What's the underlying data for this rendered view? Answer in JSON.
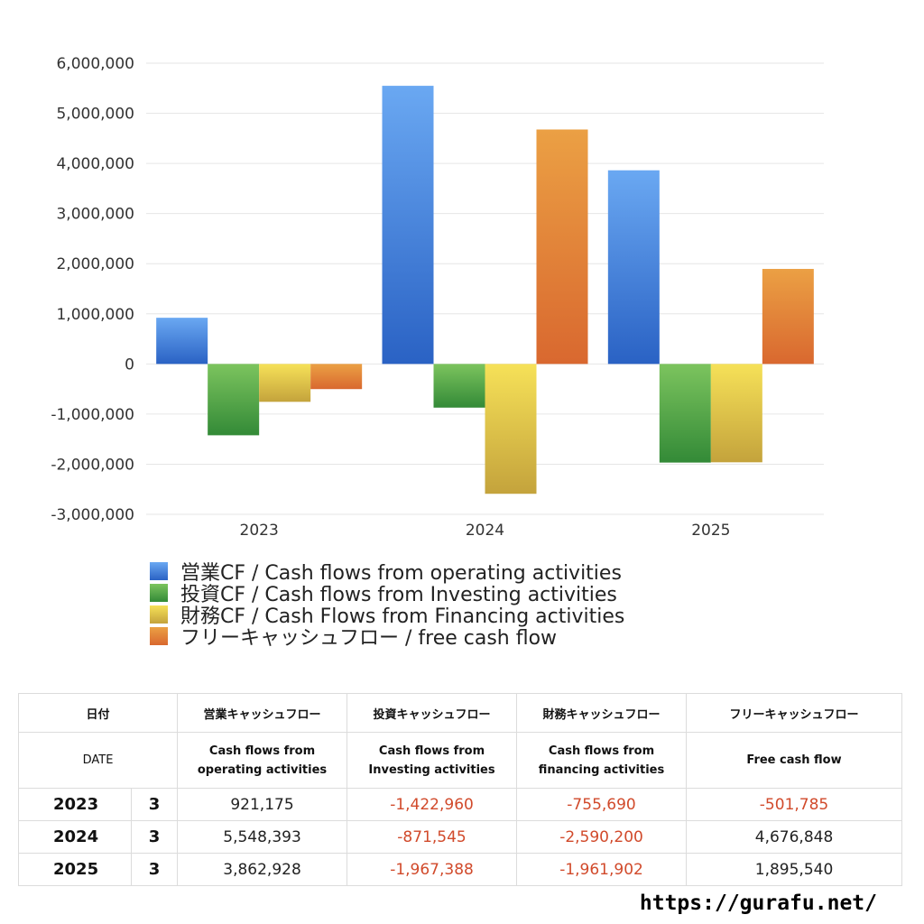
{
  "chart_data": {
    "type": "bar",
    "categories": [
      "2023",
      "2024",
      "2025"
    ],
    "series": [
      {
        "name": "営業CF / Cash flows from operating activities",
        "values": [
          921175,
          5548393,
          3862928
        ],
        "color": "#3f7fdc"
      },
      {
        "name": "投資CF / Cash flows from Investing activities",
        "values": [
          -1422960,
          -871545,
          -1967388
        ],
        "color": "#4aa047"
      },
      {
        "name": "財務CF / Cash Flows from Financing activities",
        "values": [
          -755690,
          -2590200,
          -1961902
        ],
        "color": "#e3c94a"
      },
      {
        "name": "フリーキャッシュフロー / free cash flow",
        "values": [
          -501785,
          4676848,
          1895540
        ],
        "color": "#e1813a"
      }
    ],
    "ylim": [
      -3000000,
      6000000
    ],
    "yticks": [
      6000000,
      5000000,
      4000000,
      3000000,
      2000000,
      1000000,
      0,
      -1000000,
      -2000000,
      -3000000
    ],
    "ytick_labels": [
      "6,000,000",
      "5,000,000",
      "4,000,000",
      "3,000,000",
      "2,000,000",
      "1,000,000",
      "0",
      "-1,000,000",
      "-2,000,000",
      "-3,000,000"
    ],
    "grid": true,
    "legend_position": "bottom"
  },
  "table": {
    "header_jp": {
      "date": "日付",
      "operating": "営業キャッシュフロー",
      "investing": "投資キャッシュフロー",
      "financing": "財務キャッシュフロー",
      "free": "フリーキャッシュフロー"
    },
    "header_en": {
      "date": "DATE",
      "operating_1": "Cash flows from",
      "operating_2": "operating activities",
      "investing_1": "Cash flows from",
      "investing_2": "Investing activities",
      "financing_1": "Cash flows from",
      "financing_2": "financing activities",
      "free": "Free cash flow"
    },
    "rows": [
      {
        "year": "2023",
        "month": "3",
        "operating": "921,175",
        "investing": "-1,422,960",
        "financing": "-755,690",
        "free": "-501,785"
      },
      {
        "year": "2024",
        "month": "3",
        "operating": "5,548,393",
        "investing": "-871,545",
        "financing": "-2,590,200",
        "free": "4,676,848"
      },
      {
        "year": "2025",
        "month": "3",
        "operating": "3,862,928",
        "investing": "-1,967,388",
        "financing": "-1,961,902",
        "free": "1,895,540"
      }
    ]
  },
  "footer_url": "https://gurafu.net/"
}
